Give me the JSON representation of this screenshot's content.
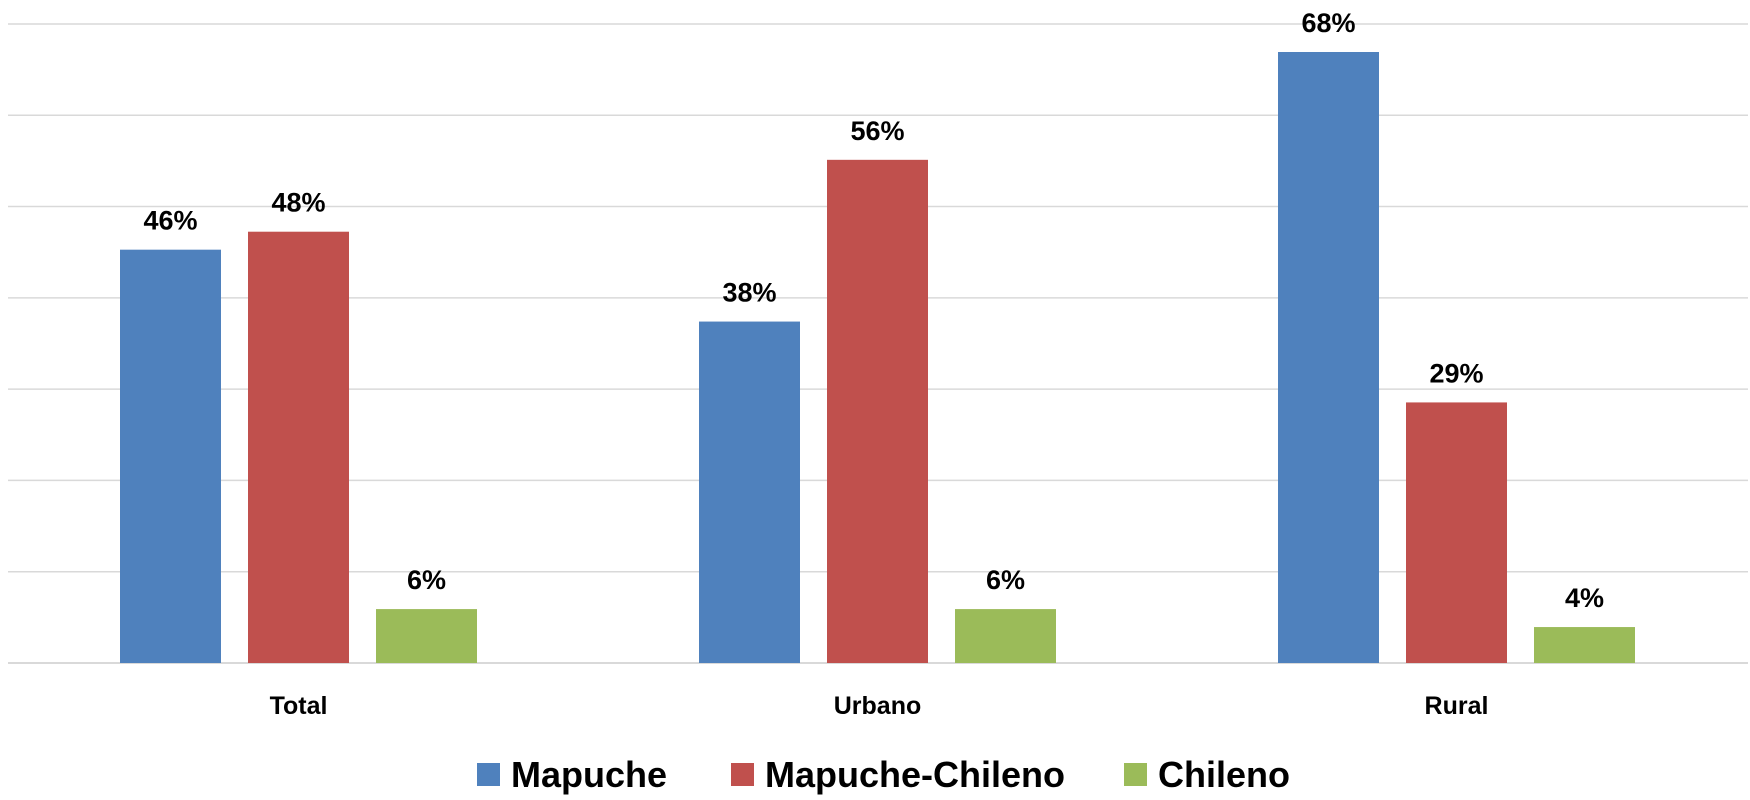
{
  "chart_data": {
    "type": "bar",
    "title": "",
    "xlabel": "",
    "ylabel": "",
    "ylim": [
      0,
      70
    ],
    "grid": true,
    "legend_position": "bottom",
    "categories": [
      "Total",
      "Urbano",
      "Rural"
    ],
    "series": [
      {
        "name": "Mapuche",
        "color": "#4f81bd",
        "values": [
          46,
          38,
          68
        ],
        "labels": [
          "46%",
          "38%",
          "68%"
        ]
      },
      {
        "name": "Mapuche-Chileno",
        "color": "#c0504d",
        "values": [
          48,
          56,
          29
        ],
        "labels": [
          "48%",
          "56%",
          "29%"
        ]
      },
      {
        "name": "Chileno",
        "color": "#9bbb59",
        "values": [
          6,
          6,
          4
        ],
        "labels": [
          "6%",
          "6%",
          "4%"
        ]
      }
    ]
  }
}
